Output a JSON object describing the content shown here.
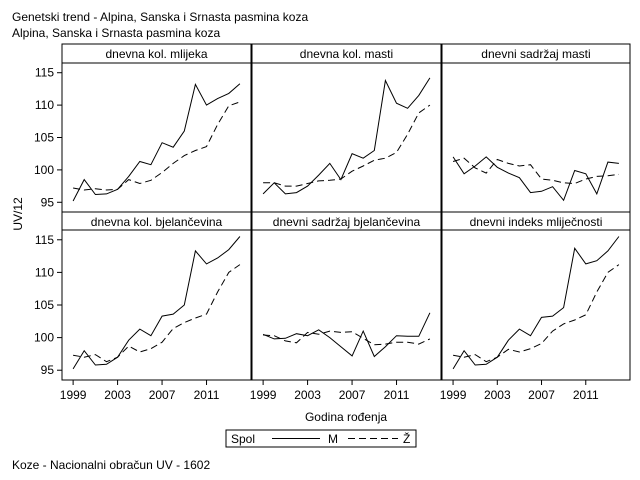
{
  "header": {
    "title": "Genetski trend - Alpina, Sanska i Srnasta pasmina koza",
    "subtitle": "Alpina, Sanska i Srnasta pasmina koza"
  },
  "footer": {
    "note": "Koze - Nacionalni obračun UV - 1602"
  },
  "chart_data": {
    "type": "line",
    "xlabel": "Godina rođenja",
    "ylabel": "UV/12",
    "xticks": [
      1999,
      2003,
      2007,
      2011
    ],
    "yticks": [
      95,
      100,
      105,
      110,
      115
    ],
    "xlim": [
      1998,
      2015
    ],
    "ylim": [
      93.5,
      116.5
    ],
    "legend": {
      "title": "Spol",
      "placement": "bottom-center",
      "entries": [
        {
          "label": "M",
          "style": "solid"
        },
        {
          "label": "Ž",
          "style": "dashed"
        }
      ]
    },
    "x": [
      1999,
      2000,
      2001,
      2002,
      2003,
      2004,
      2005,
      2006,
      2007,
      2008,
      2009,
      2010,
      2011,
      2012,
      2013,
      2014
    ],
    "panels": [
      {
        "title": "dnevna kol. mlijeka",
        "series": [
          {
            "name": "M",
            "values": [
              95.2,
              98.5,
              96.2,
              96.3,
              97.0,
              99.0,
              101.3,
              100.8,
              104.2,
              103.5,
              106.0,
              113.2,
              110.0,
              111.0,
              111.8,
              113.3
            ]
          },
          {
            "name": "Ž",
            "values": [
              97.2,
              96.9,
              97.1,
              96.9,
              97.0,
              98.5,
              97.9,
              98.4,
              99.6,
              101.0,
              102.2,
              103.0,
              103.6,
              107.0,
              109.9,
              110.5
            ]
          }
        ]
      },
      {
        "title": "dnevna kol. masti",
        "series": [
          {
            "name": "M",
            "values": [
              96.3,
              98.0,
              96.3,
              96.5,
              97.5,
              99.2,
              101.0,
              98.5,
              102.5,
              101.8,
              103.0,
              113.8,
              110.3,
              109.5,
              111.5,
              114.2
            ]
          },
          {
            "name": "Ž",
            "values": [
              98.0,
              98.0,
              97.5,
              97.5,
              97.9,
              98.3,
              98.4,
              98.6,
              99.8,
              100.6,
              101.5,
              101.8,
              102.7,
              105.5,
              108.8,
              110.0
            ]
          }
        ]
      },
      {
        "title": "dnevni sadržaj masti",
        "series": [
          {
            "name": "M",
            "values": [
              102.0,
              99.4,
              100.6,
              102.0,
              100.4,
              99.5,
              98.8,
              96.5,
              96.7,
              97.4,
              95.3,
              99.9,
              99.4,
              96.3,
              101.2,
              101.0
            ]
          },
          {
            "name": "Ž",
            "values": [
              101.3,
              101.8,
              100.3,
              99.5,
              101.6,
              101.0,
              100.6,
              100.8,
              98.6,
              98.4,
              98.0,
              97.9,
              98.6,
              99.0,
              99.1,
              99.3
            ]
          }
        ]
      },
      {
        "title": "dnevna kol. bjelančevina",
        "series": [
          {
            "name": "M",
            "values": [
              95.2,
              98.0,
              95.8,
              95.9,
              97.0,
              99.6,
              101.3,
              100.3,
              103.3,
              103.6,
              105.0,
              113.3,
              111.3,
              112.2,
              113.5,
              115.5
            ]
          },
          {
            "name": "Ž",
            "values": [
              97.3,
              97.0,
              97.4,
              96.3,
              97.0,
              98.7,
              97.8,
              98.3,
              99.3,
              101.4,
              102.3,
              103.0,
              103.6,
              107.0,
              110.0,
              111.2
            ]
          }
        ]
      },
      {
        "title": "dnevni sadržaj bjelančevina",
        "series": [
          {
            "name": "M",
            "values": [
              100.5,
              99.8,
              99.9,
              100.6,
              100.3,
              101.2,
              100.0,
              98.6,
              97.2,
              101.0,
              97.1,
              98.6,
              100.3,
              100.2,
              100.2,
              103.8
            ]
          },
          {
            "name": "Ž",
            "values": [
              100.4,
              100.3,
              99.5,
              99.2,
              100.8,
              100.5,
              101.0,
              100.8,
              100.9,
              99.9,
              98.9,
              99.0,
              99.3,
              99.3,
              99.0,
              99.8
            ]
          }
        ]
      },
      {
        "title": "dnevni indeks mliječnosti",
        "series": [
          {
            "name": "M",
            "values": [
              95.2,
              98.0,
              95.8,
              95.9,
              97.0,
              99.6,
              101.3,
              100.3,
              103.1,
              103.3,
              104.6,
              113.7,
              111.3,
              111.8,
              113.3,
              115.5
            ]
          },
          {
            "name": "Ž",
            "values": [
              97.3,
              97.0,
              97.4,
              96.3,
              97.0,
              98.2,
              97.8,
              98.3,
              99.1,
              101.0,
              102.1,
              102.7,
              103.5,
              107.0,
              110.0,
              111.2
            ]
          }
        ]
      }
    ]
  }
}
